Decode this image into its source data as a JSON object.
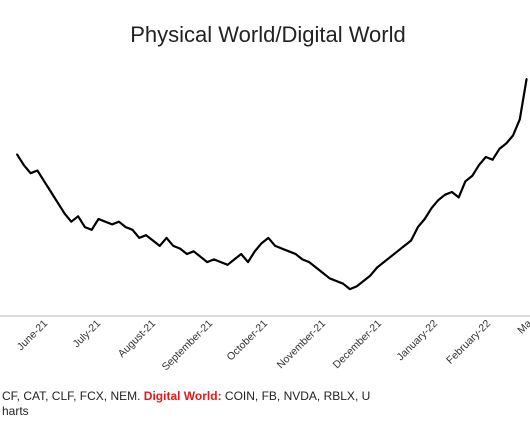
{
  "chart_data": {
    "type": "line",
    "title": "Physical World/Digital World",
    "xlabel": "",
    "ylabel": "",
    "x_tick_labels": [
      "June-21",
      "July-21",
      "August-21",
      "September-21",
      "October-21",
      "November-21",
      "December-21",
      "January-22",
      "February-22",
      "Ma"
    ],
    "grid": false,
    "legend": "none",
    "y_axis_labels_visible": false,
    "series": [
      {
        "color": "#000000",
        "x": [
          "2021-05-14",
          "2021-05-18",
          "2021-05-22",
          "2021-05-26",
          "2021-05-30",
          "2021-06-03",
          "2021-06-07",
          "2021-06-11",
          "2021-06-15",
          "2021-06-19",
          "2021-06-23",
          "2021-06-27",
          "2021-07-01",
          "2021-07-05",
          "2021-07-09",
          "2021-07-13",
          "2021-07-17",
          "2021-07-21",
          "2021-07-25",
          "2021-07-29",
          "2021-08-02",
          "2021-08-06",
          "2021-08-10",
          "2021-08-14",
          "2021-08-18",
          "2021-08-22",
          "2021-08-26",
          "2021-08-30",
          "2021-09-03",
          "2021-09-07",
          "2021-09-11",
          "2021-09-15",
          "2021-09-19",
          "2021-09-23",
          "2021-09-27",
          "2021-10-01",
          "2021-10-05",
          "2021-10-09",
          "2021-10-13",
          "2021-10-17",
          "2021-10-21",
          "2021-10-25",
          "2021-10-29",
          "2021-11-02",
          "2021-11-06",
          "2021-11-10",
          "2021-11-14",
          "2021-11-18",
          "2021-11-22",
          "2021-11-26",
          "2021-11-30",
          "2021-12-04",
          "2021-12-08",
          "2021-12-12",
          "2021-12-16",
          "2021-12-20",
          "2021-12-24",
          "2021-12-28",
          "2022-01-01",
          "2022-01-05",
          "2022-01-09",
          "2022-01-13",
          "2022-01-17",
          "2022-01-21",
          "2022-01-25",
          "2022-01-29",
          "2022-02-02",
          "2022-02-06",
          "2022-02-10",
          "2022-02-14",
          "2022-02-18",
          "2022-02-22",
          "2022-02-26",
          "2022-03-02",
          "2022-03-06",
          "2022-03-10"
        ],
        "y": [
          80,
          76,
          73,
          74,
          70,
          66,
          62,
          58,
          55,
          57,
          53,
          52,
          56,
          55,
          54,
          55,
          53,
          52,
          49,
          50,
          48,
          46,
          49,
          46,
          45,
          43,
          44,
          42,
          40,
          41,
          40,
          39,
          41,
          43,
          40,
          44,
          47,
          49,
          46,
          45,
          44,
          43,
          41,
          40,
          38,
          36,
          34,
          33,
          32,
          30,
          31,
          33,
          35,
          38,
          40,
          42,
          44,
          46,
          48,
          53,
          56,
          60,
          63,
          65,
          66,
          64,
          70,
          72,
          76,
          79,
          78,
          82,
          84,
          87,
          93,
          108
        ]
      }
    ],
    "ylim": [
      20,
      115
    ],
    "xlim": [
      "2021-05-04",
      "2022-03-12"
    ]
  },
  "footnote": {
    "prefix": "CF, CAT, CLF, FCX, NEM. ",
    "highlight": "Digital World:",
    "suffix": " COIN, FB, NVDA, RBLX, U",
    "line2": "harts"
  },
  "colors": {
    "line": "#000000",
    "highlight": "#e01b1b",
    "axis": "#bbbbbb"
  }
}
